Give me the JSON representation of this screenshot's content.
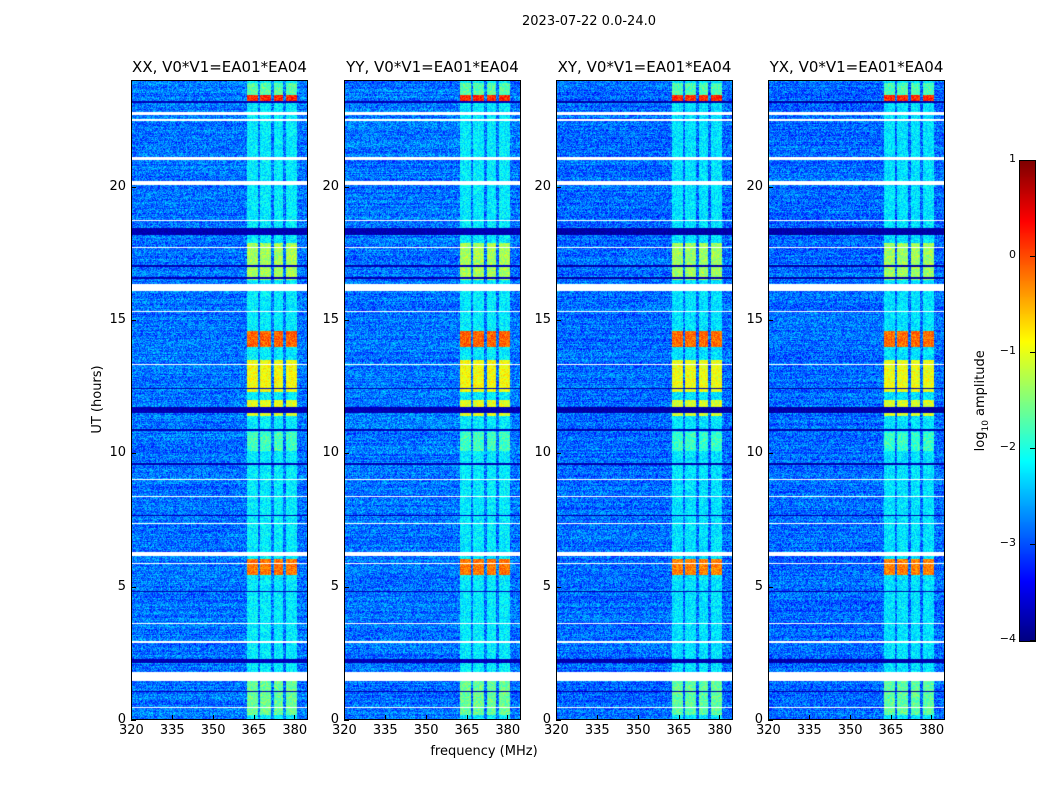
{
  "chart_data": {
    "type": "heatmap",
    "title": "2023-07-22 0.0-24.0",
    "xlabel": "frequency (MHz)",
    "ylabel": "UT (hours)",
    "xlim": [
      320,
      385
    ],
    "ylim": [
      0,
      24
    ],
    "xticks": [
      320,
      335,
      350,
      365,
      380
    ],
    "yticks": [
      0,
      5,
      10,
      15,
      20
    ],
    "panels": [
      {
        "title": "XX, V0*V1=EA01*EA04"
      },
      {
        "title": "YY, V0*V1=EA01*EA04"
      },
      {
        "title": "XY, V0*V1=EA01*EA04"
      },
      {
        "title": "YX, V0*V1=EA01*EA04"
      }
    ],
    "colorbar": {
      "label": "log10 amplitude",
      "label_main": "log",
      "label_sub": "10",
      "label_rest": " amplitude",
      "range": [
        -4,
        1
      ],
      "ticks": [
        1,
        0,
        -1,
        -2,
        -3,
        -4
      ],
      "tick_labels": [
        "1",
        "0",
        "−1",
        "−2",
        "−3",
        "−4"
      ],
      "colormap": "jet"
    },
    "background_level": -2.8,
    "rfi_channels_mhz": [
      [
        362.5,
        366.5
      ],
      [
        367.5,
        371.5
      ],
      [
        372.5,
        376
      ],
      [
        377,
        381
      ]
    ],
    "flagged_hours": [
      [
        22.45,
        22.55
      ],
      [
        22.7,
        22.8
      ],
      [
        21.0,
        21.12
      ],
      [
        20.05,
        20.2
      ],
      [
        18.7,
        18.75
      ],
      [
        17.7,
        17.75
      ],
      [
        16.1,
        16.35
      ],
      [
        15.3,
        15.35
      ],
      [
        13.3,
        13.35
      ],
      [
        9.0,
        9.05
      ],
      [
        8.35,
        8.4
      ],
      [
        7.35,
        7.4
      ],
      [
        6.15,
        6.3
      ],
      [
        5.85,
        5.9
      ],
      [
        3.6,
        3.65
      ],
      [
        2.9,
        2.95
      ],
      [
        1.45,
        1.8
      ],
      [
        0.45,
        0.5
      ]
    ],
    "zero_hours": [
      [
        23.15,
        23.2
      ],
      [
        18.2,
        18.45
      ],
      [
        17.0,
        17.05
      ],
      [
        16.55,
        16.6
      ],
      [
        12.4,
        12.45
      ],
      [
        11.5,
        11.75
      ],
      [
        10.85,
        10.9
      ],
      [
        9.55,
        9.65
      ],
      [
        7.65,
        7.7
      ],
      [
        4.8,
        4.85
      ],
      [
        2.15,
        2.3
      ],
      [
        1.05,
        1.1
      ]
    ],
    "bright_events": [
      {
        "hours": [
          23.2,
          23.45
        ],
        "level": 0.2
      },
      {
        "hours": [
          23.45,
          23.9
        ],
        "level": -1.7
      },
      {
        "hours": [
          16.5,
          17.9
        ],
        "level": -1.3
      },
      {
        "hours": [
          14.0,
          14.6
        ],
        "level": -0.1
      },
      {
        "hours": [
          12.3,
          13.5
        ],
        "level": -0.9
      },
      {
        "hours": [
          11.4,
          12.0
        ],
        "level": -1.0
      },
      {
        "hours": [
          10.1,
          10.8
        ],
        "level": -1.8
      },
      {
        "hours": [
          5.45,
          6.05
        ],
        "level": -0.2
      },
      {
        "hours": [
          0.2,
          1.45
        ],
        "level": -1.6
      },
      {
        "hours": [
          0,
          24
        ],
        "level": -2.2
      }
    ]
  }
}
